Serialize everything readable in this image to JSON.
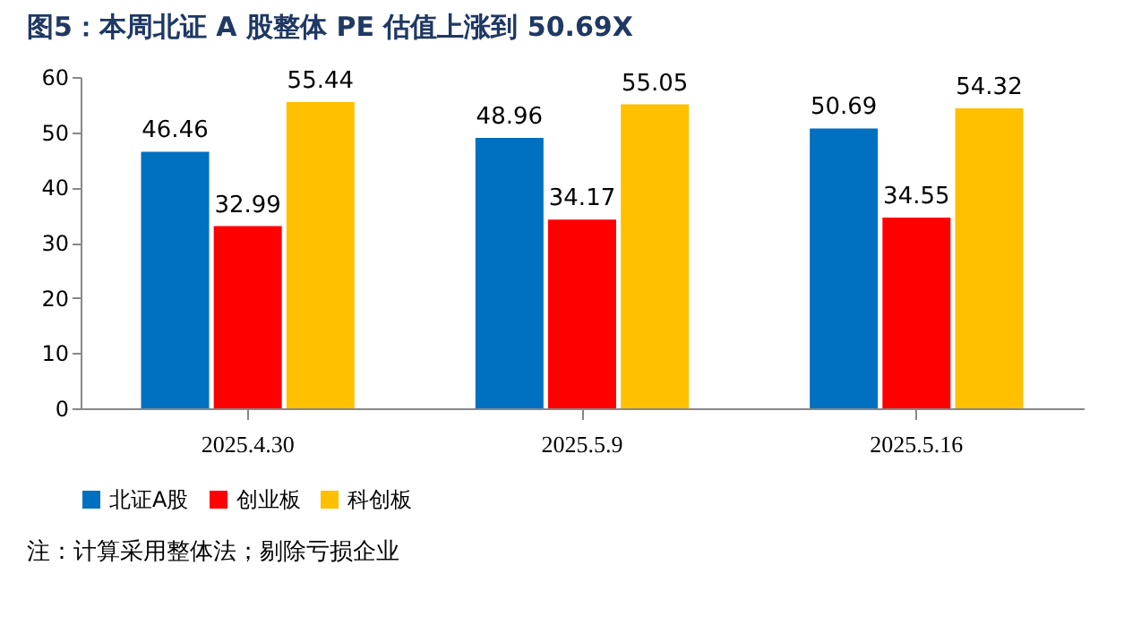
{
  "chart_data": {
    "type": "bar",
    "title": "图5：本周北证 A 股整体 PE 估值上涨到 50.69X",
    "categories": [
      "2025.4.30",
      "2025.5.9",
      "2025.5.16"
    ],
    "series": [
      {
        "name": "北证A股",
        "color": "#0070c0",
        "values": [
          46.46,
          48.96,
          50.69
        ]
      },
      {
        "name": "创业板",
        "color": "#ff0000",
        "values": [
          32.99,
          34.17,
          34.55
        ]
      },
      {
        "name": "科创板",
        "color": "#ffc000",
        "values": [
          55.44,
          55.05,
          54.32
        ]
      }
    ],
    "ylim": [
      0,
      60
    ],
    "yticks": [
      0,
      10,
      20,
      30,
      40,
      50,
      60
    ],
    "grid": false,
    "legend": "bottom",
    "data_labels": true,
    "annotations": [
      "注：计算采用整体法；剔除亏损企业"
    ]
  }
}
